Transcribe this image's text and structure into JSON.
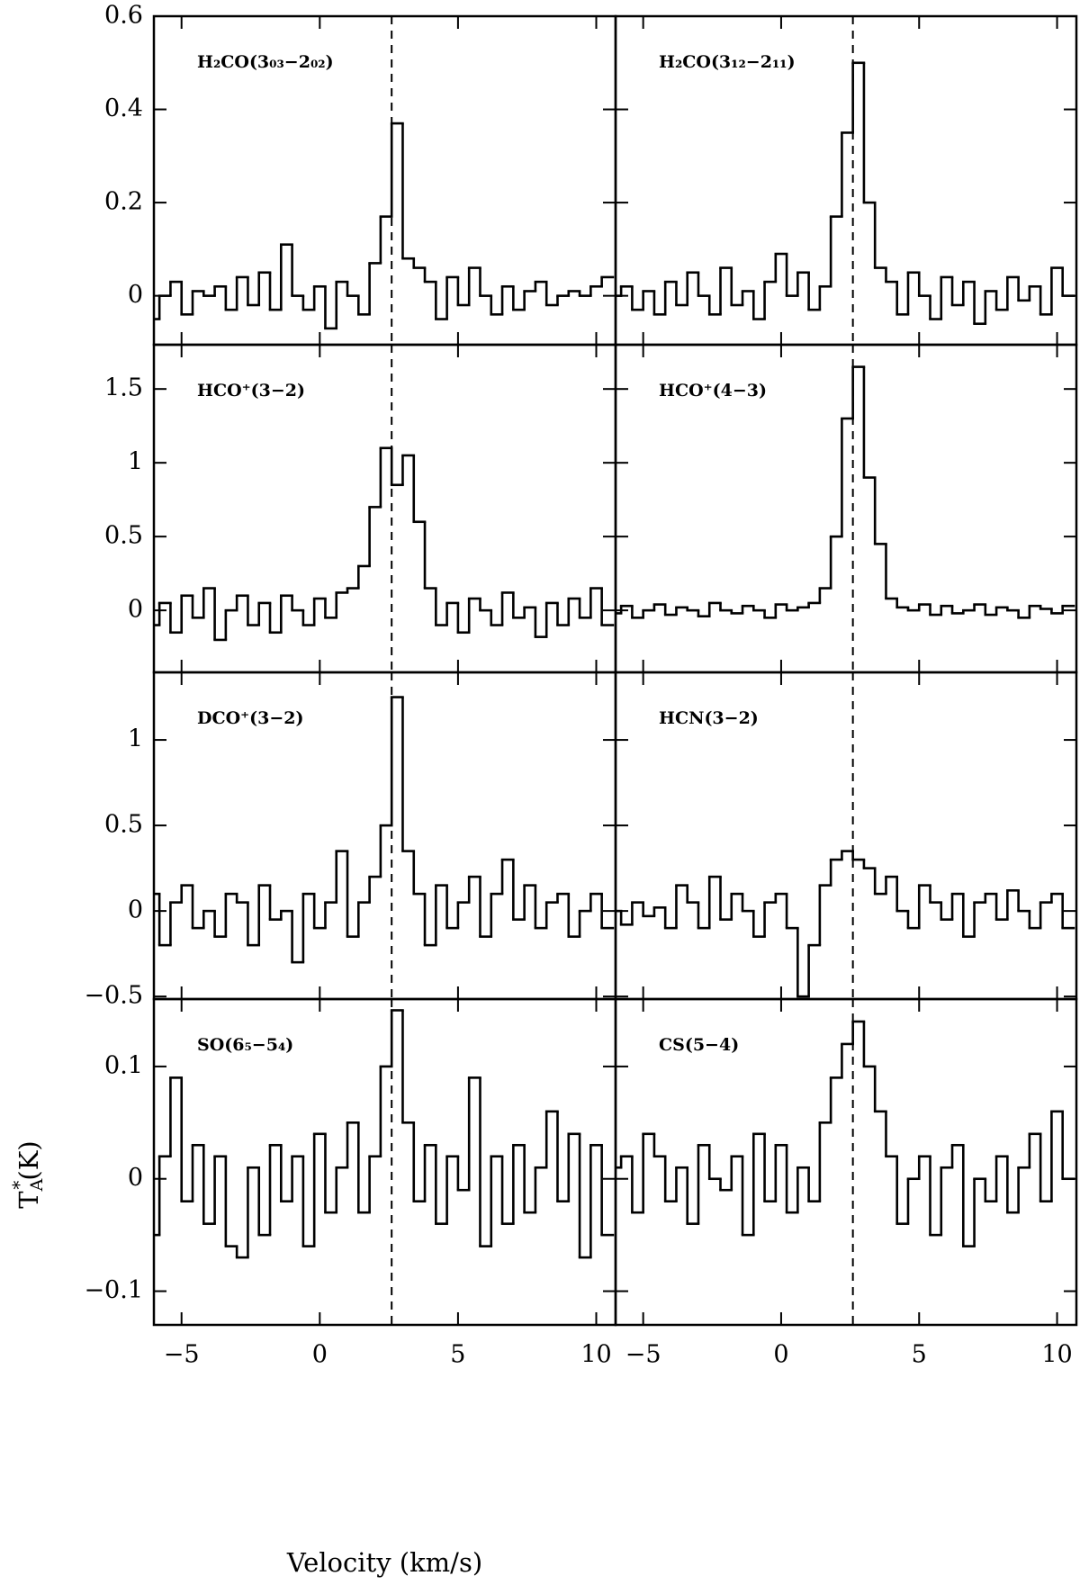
{
  "chart_data": [
    {
      "type": "step",
      "title": "H₂CO(3₀₃−2₀₂)",
      "xlim": [
        -6,
        10.7
      ],
      "ylim": [
        -0.105,
        0.6
      ],
      "xticks": [
        -5,
        0,
        5,
        10
      ],
      "yticks": [
        0,
        0.2,
        0.4,
        0.6
      ],
      "reference_velocity": 2.6,
      "color": "#000000",
      "x": [
        -6,
        -5.6,
        -5.2,
        -4.8,
        -4.4,
        -4,
        -3.6,
        -3.2,
        -2.8,
        -2.4,
        -2,
        -1.6,
        -1.2,
        -0.8,
        -0.4,
        0,
        0.4,
        0.8,
        1.2,
        1.6,
        2,
        2.4,
        2.8,
        3.2,
        3.6,
        4,
        4.4,
        4.8,
        5.2,
        5.6,
        6,
        6.4,
        6.8,
        7.2,
        7.6,
        8,
        8.4,
        8.8,
        9.2,
        9.6,
        10,
        10.4
      ],
      "values": [
        -0.05,
        0.0,
        0.03,
        -0.04,
        0.01,
        0.0,
        0.02,
        -0.03,
        0.04,
        -0.02,
        0.05,
        -0.03,
        0.11,
        0.0,
        -0.03,
        0.02,
        -0.07,
        0.03,
        0.0,
        -0.04,
        0.07,
        0.17,
        0.37,
        0.08,
        0.06,
        0.03,
        -0.05,
        0.04,
        -0.02,
        0.06,
        0.0,
        -0.04,
        0.02,
        -0.03,
        0.01,
        0.03,
        -0.02,
        0.0,
        0.01,
        0.0,
        0.02,
        0.04
      ]
    },
    {
      "type": "step",
      "title": "H₂CO(3₁₂−2₁₁)",
      "xlim": [
        -6,
        10.7
      ],
      "ylim": [
        -0.105,
        0.6
      ],
      "xticks": [
        -5,
        0,
        5,
        10
      ],
      "yticks": [
        0,
        0.2,
        0.4,
        0.6
      ],
      "reference_velocity": 2.6,
      "color": "#000000",
      "x": [
        -6,
        -5.6,
        -5.2,
        -4.8,
        -4.4,
        -4,
        -3.6,
        -3.2,
        -2.8,
        -2.4,
        -2,
        -1.6,
        -1.2,
        -0.8,
        -0.4,
        0,
        0.4,
        0.8,
        1.2,
        1.6,
        2,
        2.4,
        2.8,
        3.2,
        3.6,
        4,
        4.4,
        4.8,
        5.2,
        5.6,
        6,
        6.4,
        6.8,
        7.2,
        7.6,
        8,
        8.4,
        8.8,
        9.2,
        9.6,
        10,
        10.4
      ],
      "values": [
        0.0,
        0.02,
        -0.03,
        0.01,
        -0.04,
        0.03,
        -0.02,
        0.05,
        0.0,
        -0.04,
        0.06,
        -0.02,
        0.01,
        -0.05,
        0.03,
        0.09,
        0.0,
        0.05,
        -0.03,
        0.02,
        0.17,
        0.35,
        0.5,
        0.2,
        0.06,
        0.03,
        -0.04,
        0.05,
        0.0,
        -0.05,
        0.04,
        -0.02,
        0.03,
        -0.06,
        0.01,
        -0.03,
        0.04,
        -0.01,
        0.02,
        -0.04,
        0.06,
        0.0
      ]
    },
    {
      "type": "step",
      "title": "HCO⁺(3−2)",
      "xlim": [
        -6,
        10.7
      ],
      "ylim": [
        -0.42,
        1.8
      ],
      "xticks": [
        -5,
        0,
        5,
        10
      ],
      "yticks": [
        0,
        0.5,
        1,
        1.5
      ],
      "reference_velocity": 2.6,
      "color": "#000000",
      "x": [
        -6,
        -5.6,
        -5.2,
        -4.8,
        -4.4,
        -4,
        -3.6,
        -3.2,
        -2.8,
        -2.4,
        -2,
        -1.6,
        -1.2,
        -0.8,
        -0.4,
        0,
        0.4,
        0.8,
        1.2,
        1.6,
        2,
        2.4,
        2.8,
        3.2,
        3.6,
        4,
        4.4,
        4.8,
        5.2,
        5.6,
        6,
        6.4,
        6.8,
        7.2,
        7.6,
        8,
        8.4,
        8.8,
        9.2,
        9.6,
        10,
        10.4
      ],
      "values": [
        -0.1,
        0.05,
        -0.15,
        0.1,
        -0.05,
        0.15,
        -0.2,
        0.0,
        0.1,
        -0.1,
        0.05,
        -0.15,
        0.1,
        0.0,
        -0.1,
        0.08,
        -0.05,
        0.12,
        0.15,
        0.3,
        0.7,
        1.1,
        0.85,
        1.05,
        0.6,
        0.15,
        -0.1,
        0.05,
        -0.15,
        0.08,
        0.0,
        -0.1,
        0.12,
        -0.05,
        0.02,
        -0.18,
        0.05,
        -0.1,
        0.08,
        -0.05,
        0.15,
        -0.1
      ]
    },
    {
      "type": "step",
      "title": "HCO⁺(4−3)",
      "xlim": [
        -6,
        10.7
      ],
      "ylim": [
        -0.42,
        1.8
      ],
      "xticks": [
        -5,
        0,
        5,
        10
      ],
      "yticks": [
        0,
        0.5,
        1,
        1.5
      ],
      "reference_velocity": 2.6,
      "color": "#000000",
      "x": [
        -6,
        -5.6,
        -5.2,
        -4.8,
        -4.4,
        -4,
        -3.6,
        -3.2,
        -2.8,
        -2.4,
        -2,
        -1.6,
        -1.2,
        -0.8,
        -0.4,
        0,
        0.4,
        0.8,
        1.2,
        1.6,
        2,
        2.4,
        2.8,
        3.2,
        3.6,
        4,
        4.4,
        4.8,
        5.2,
        5.6,
        6,
        6.4,
        6.8,
        7.2,
        7.6,
        8,
        8.4,
        8.8,
        9.2,
        9.6,
        10,
        10.4
      ],
      "values": [
        -0.02,
        0.03,
        -0.05,
        0.0,
        0.04,
        -0.03,
        0.02,
        0.0,
        -0.04,
        0.05,
        0.0,
        -0.02,
        0.03,
        0.0,
        -0.05,
        0.04,
        0.0,
        0.02,
        0.05,
        0.15,
        0.5,
        1.3,
        1.65,
        0.9,
        0.45,
        0.08,
        0.02,
        0.0,
        0.04,
        -0.03,
        0.03,
        -0.02,
        0.0,
        0.04,
        -0.03,
        0.02,
        0.0,
        -0.05,
        0.03,
        0.01,
        -0.02,
        0.03
      ]
    },
    {
      "type": "step",
      "title": "DCO⁺(3−2)",
      "xlim": [
        -6,
        10.7
      ],
      "ylim": [
        -0.515,
        1.395
      ],
      "xticks": [
        -5,
        0,
        5,
        10
      ],
      "yticks": [
        {
          "value": -0.5,
          "label": "−0.5"
        },
        0,
        0.5,
        1
      ],
      "reference_velocity": 2.6,
      "color": "#000000",
      "x": [
        -6,
        -5.6,
        -5.2,
        -4.8,
        -4.4,
        -4,
        -3.6,
        -3.2,
        -2.8,
        -2.4,
        -2,
        -1.6,
        -1.2,
        -0.8,
        -0.4,
        0,
        0.4,
        0.8,
        1.2,
        1.6,
        2,
        2.4,
        2.8,
        3.2,
        3.6,
        4,
        4.4,
        4.8,
        5.2,
        5.6,
        6,
        6.4,
        6.8,
        7.2,
        7.6,
        8,
        8.4,
        8.8,
        9.2,
        9.6,
        10,
        10.4
      ],
      "values": [
        0.1,
        -0.2,
        0.05,
        0.15,
        -0.1,
        0.0,
        -0.15,
        0.1,
        0.05,
        -0.2,
        0.15,
        -0.05,
        0.0,
        -0.3,
        0.1,
        -0.1,
        0.05,
        0.35,
        -0.15,
        0.05,
        0.2,
        0.5,
        1.25,
        0.35,
        0.1,
        -0.2,
        0.15,
        -0.1,
        0.05,
        0.2,
        -0.15,
        0.1,
        0.3,
        -0.05,
        0.15,
        -0.1,
        0.05,
        0.1,
        -0.15,
        0.0,
        0.1,
        -0.1
      ]
    },
    {
      "type": "step",
      "title": "HCN(3−2)",
      "xlim": [
        -6,
        10.7
      ],
      "ylim": [
        -0.515,
        1.395
      ],
      "xticks": [
        -5,
        0,
        5,
        10
      ],
      "yticks": [
        -0.5,
        0,
        0.5,
        1
      ],
      "reference_velocity": 2.6,
      "color": "#000000",
      "x": [
        -6,
        -5.6,
        -5.2,
        -4.8,
        -4.4,
        -4,
        -3.6,
        -3.2,
        -2.8,
        -2.4,
        -2,
        -1.6,
        -1.2,
        -0.8,
        -0.4,
        0,
        0.4,
        0.8,
        1.2,
        1.6,
        2,
        2.4,
        2.8,
        3.2,
        3.6,
        4,
        4.4,
        4.8,
        5.2,
        5.6,
        6,
        6.4,
        6.8,
        7.2,
        7.6,
        8,
        8.4,
        8.8,
        9.2,
        9.6,
        10,
        10.4
      ],
      "values": [
        0.0,
        -0.08,
        0.05,
        -0.03,
        0.02,
        -0.1,
        0.15,
        0.05,
        -0.1,
        0.2,
        -0.05,
        0.1,
        0.0,
        -0.15,
        0.05,
        0.1,
        -0.1,
        -0.5,
        -0.2,
        0.15,
        0.3,
        0.35,
        0.3,
        0.25,
        0.1,
        0.2,
        0.0,
        -0.1,
        0.15,
        0.05,
        -0.05,
        0.1,
        -0.15,
        0.05,
        0.1,
        -0.05,
        0.12,
        0.0,
        -0.1,
        0.05,
        0.1,
        -0.1
      ]
    },
    {
      "type": "step",
      "title": "SO(6₅−5₄)",
      "xlim": [
        -6,
        10.7
      ],
      "ylim": [
        -0.13,
        0.16
      ],
      "xticks": [
        {
          "value": -5,
          "label": "−5"
        },
        0,
        5,
        10
      ],
      "yticks": [
        {
          "value": -0.1,
          "label": "−0.1"
        },
        0,
        0.1
      ],
      "reference_velocity": 2.6,
      "color": "#000000",
      "x_label": "Velocity (km/s)",
      "y_label": {
        "main": "T",
        "sub": "A",
        "sup": "*",
        "unit": "(K)"
      },
      "x": [
        -6,
        -5.6,
        -5.2,
        -4.8,
        -4.4,
        -4,
        -3.6,
        -3.2,
        -2.8,
        -2.4,
        -2,
        -1.6,
        -1.2,
        -0.8,
        -0.4,
        0,
        0.4,
        0.8,
        1.2,
        1.6,
        2,
        2.4,
        2.8,
        3.2,
        3.6,
        4,
        4.4,
        4.8,
        5.2,
        5.6,
        6,
        6.4,
        6.8,
        7.2,
        7.6,
        8,
        8.4,
        8.8,
        9.2,
        9.6,
        10,
        10.4
      ],
      "values": [
        -0.05,
        0.02,
        0.09,
        -0.02,
        0.03,
        -0.04,
        0.02,
        -0.06,
        -0.07,
        0.01,
        -0.05,
        0.03,
        -0.02,
        0.02,
        -0.06,
        0.04,
        -0.03,
        0.01,
        0.05,
        -0.03,
        0.02,
        0.1,
        0.15,
        0.05,
        -0.02,
        0.03,
        -0.04,
        0.02,
        -0.01,
        0.09,
        -0.06,
        0.02,
        -0.04,
        0.03,
        -0.03,
        0.01,
        0.06,
        -0.02,
        0.04,
        -0.07,
        0.03,
        -0.05
      ]
    },
    {
      "type": "step",
      "title": "CS(5−4)",
      "xlim": [
        -6,
        10.7
      ],
      "ylim": [
        -0.13,
        0.16
      ],
      "xticks": [
        {
          "value": -5,
          "label": "−5"
        },
        0,
        5,
        10
      ],
      "yticks": [
        -0.1,
        0,
        0.1
      ],
      "reference_velocity": 2.6,
      "color": "#000000",
      "x": [
        -6,
        -5.6,
        -5.2,
        -4.8,
        -4.4,
        -4,
        -3.6,
        -3.2,
        -2.8,
        -2.4,
        -2,
        -1.6,
        -1.2,
        -0.8,
        -0.4,
        0,
        0.4,
        0.8,
        1.2,
        1.6,
        2,
        2.4,
        2.8,
        3.2,
        3.6,
        4,
        4.4,
        4.8,
        5.2,
        5.6,
        6,
        6.4,
        6.8,
        7.2,
        7.6,
        8,
        8.4,
        8.8,
        9.2,
        9.6,
        10,
        10.4
      ],
      "values": [
        0.01,
        0.02,
        -0.03,
        0.04,
        0.02,
        -0.02,
        0.01,
        -0.04,
        0.03,
        0.0,
        -0.01,
        0.02,
        -0.05,
        0.04,
        -0.02,
        0.03,
        -0.03,
        0.01,
        -0.02,
        0.05,
        0.09,
        0.12,
        0.14,
        0.1,
        0.06,
        0.02,
        -0.04,
        0.0,
        0.02,
        -0.05,
        0.01,
        0.03,
        -0.06,
        0.0,
        -0.02,
        0.02,
        -0.03,
        0.01,
        0.04,
        -0.02,
        0.06,
        0.0
      ]
    }
  ]
}
